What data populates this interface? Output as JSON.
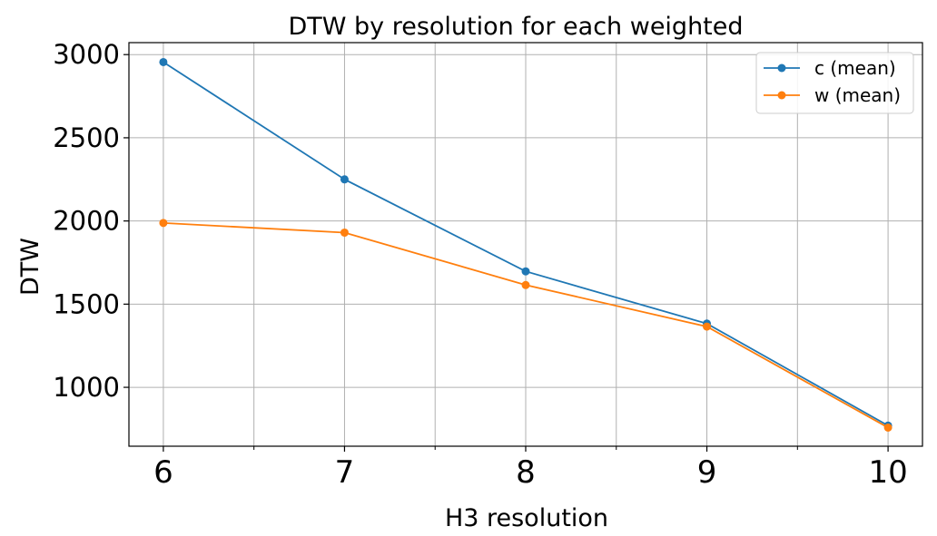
{
  "chart_data": {
    "type": "line",
    "title": "DTW by resolution for each weighted",
    "xlabel": "H3 resolution",
    "ylabel": "DTW",
    "x": [
      6,
      7,
      8,
      9,
      10
    ],
    "x_tick_labels": [
      "6",
      "7",
      "8",
      "9",
      "10"
    ],
    "x_minor_ticks": [
      6.5,
      7.5,
      8.5,
      9.5
    ],
    "xlim": [
      5.81,
      10.19
    ],
    "y_ticks": [
      1000,
      1500,
      2000,
      2500,
      3000
    ],
    "y_tick_labels": [
      "1000",
      "1500",
      "2000",
      "2500",
      "3000"
    ],
    "ylim": [
      646,
      3072
    ],
    "grid": true,
    "legend_position": "top-right",
    "series": [
      {
        "name": "c (mean)",
        "color": "#1f77b4",
        "values": [
          2955,
          2250,
          1697,
          1383,
          770
        ]
      },
      {
        "name": "w (mean)",
        "color": "#ff7f0e",
        "values": [
          1988,
          1930,
          1615,
          1365,
          758
        ]
      }
    ]
  }
}
